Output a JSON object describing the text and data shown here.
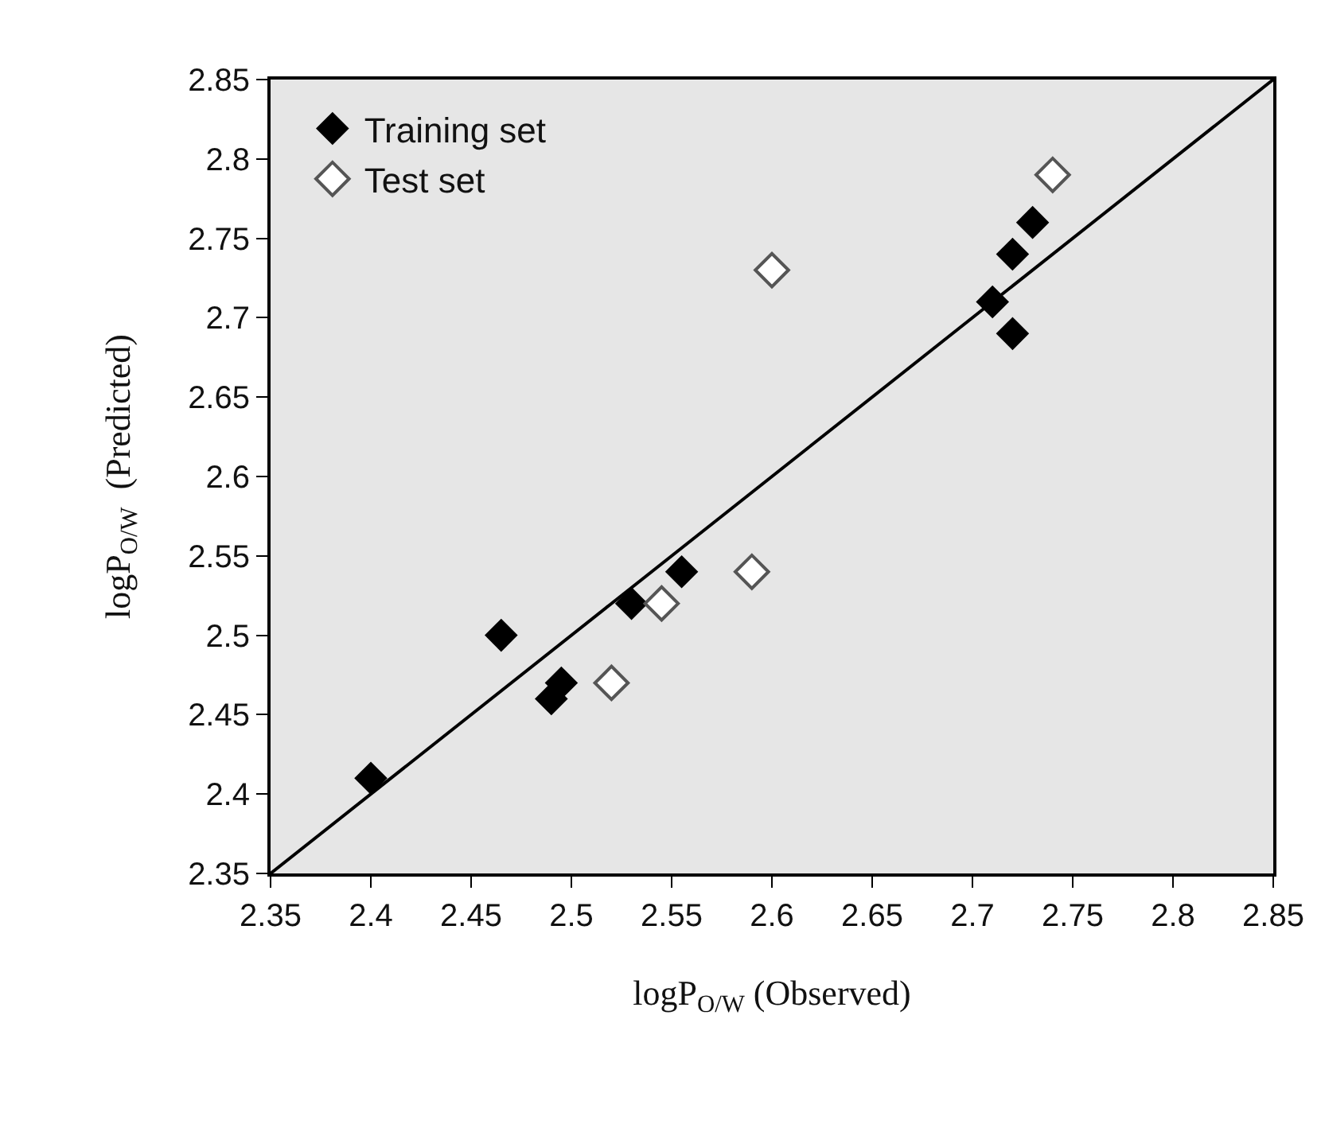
{
  "chart_data": {
    "type": "scatter",
    "xlabel": "logP$_{O/W}$ (Observed)",
    "ylabel": "logP$_{O/W}$  (Predicted)",
    "xlim": [
      2.35,
      2.85
    ],
    "xticks": [
      2.35,
      2.4,
      2.45,
      2.5,
      2.55,
      2.6,
      2.65,
      2.7,
      2.75,
      2.8,
      2.85
    ],
    "ylim": [
      2.35,
      2.85
    ],
    "yticks": [
      2.35,
      2.4,
      2.45,
      2.5,
      2.55,
      2.6,
      2.65,
      2.7,
      2.75,
      2.8,
      2.85
    ],
    "grid": false,
    "legend": "top left",
    "marker": "diamond",
    "series": [
      {
        "name": "Training set",
        "color": "#000000",
        "x": [
          2.4,
          2.465,
          2.49,
          2.495,
          2.53,
          2.555,
          2.71,
          2.72,
          2.72,
          2.73
        ],
        "values": [
          2.41,
          2.5,
          2.46,
          2.47,
          2.52,
          2.54,
          2.71,
          2.69,
          2.74,
          2.76
        ]
      },
      {
        "name": "Test set",
        "color": "#555555",
        "marker": "diamond-open",
        "x": [
          2.52,
          2.545,
          2.59,
          2.6,
          2.74
        ],
        "values": [
          2.47,
          2.52,
          2.54,
          2.73,
          2.79
        ]
      },
      {
        "type": "line",
        "color": "#000000",
        "marker": "none",
        "line_style": "solid",
        "x": [
          2.35,
          2.85
        ],
        "values": [
          2.35,
          2.85
        ]
      }
    ]
  }
}
